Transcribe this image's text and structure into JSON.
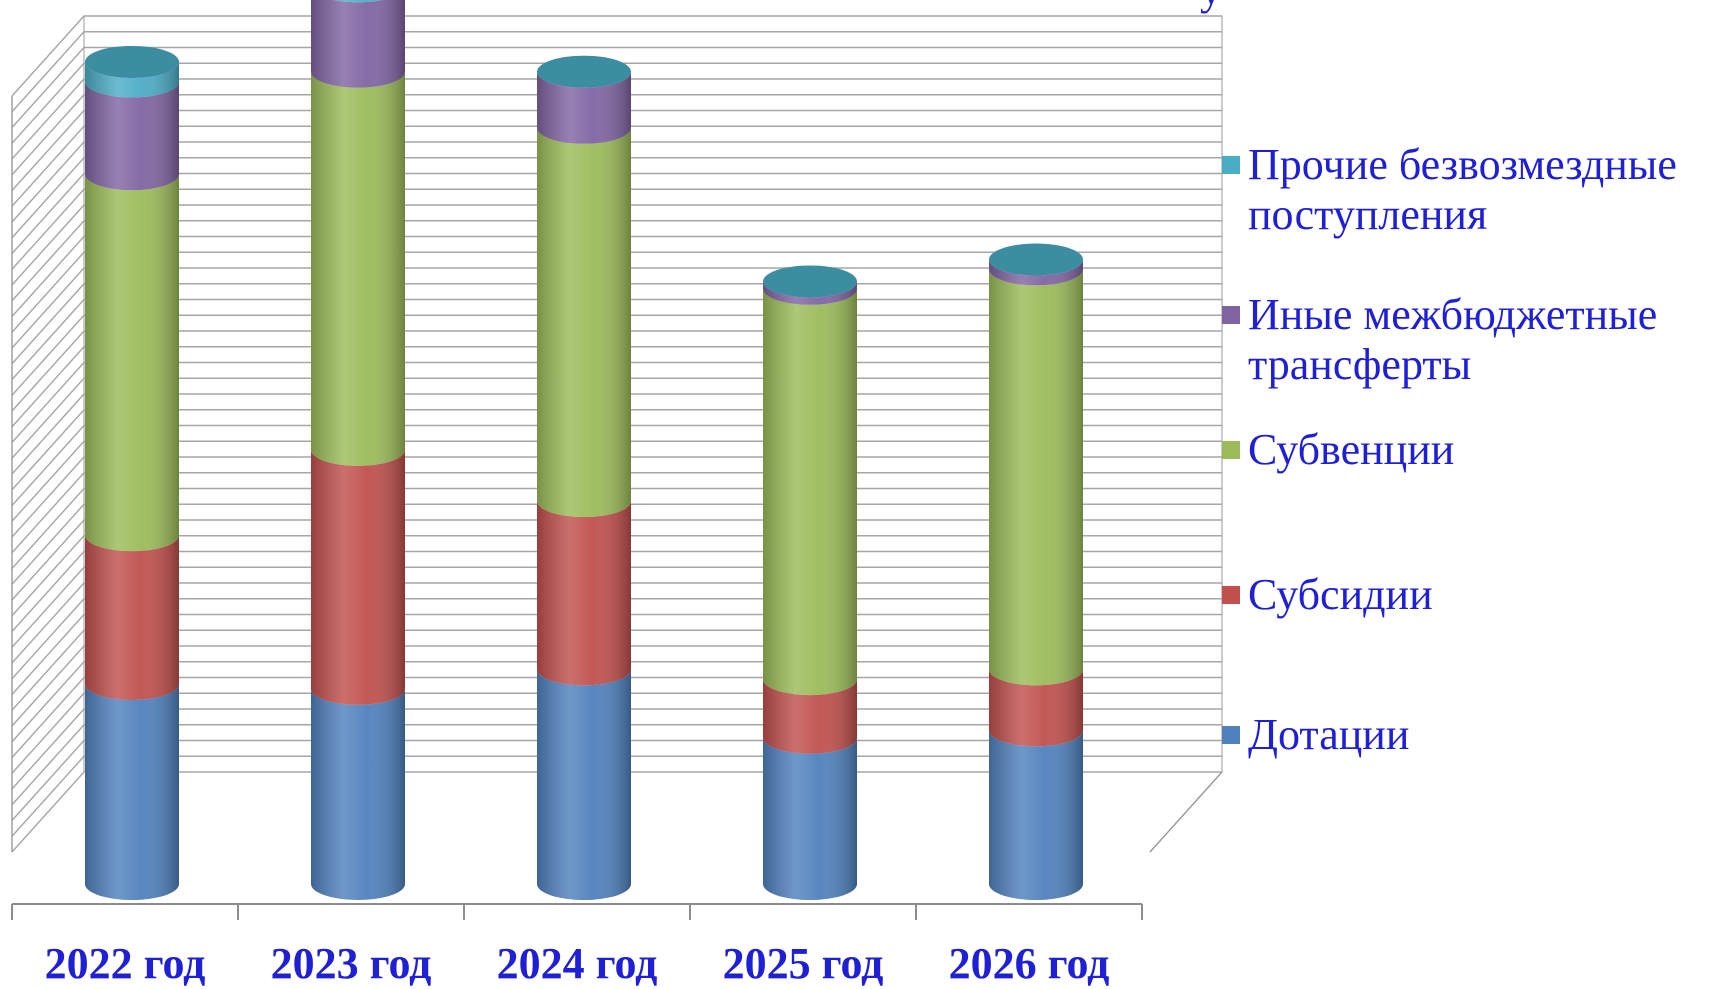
{
  "chart_data": {
    "type": "bar",
    "stacked": true,
    "style": "3d-cylinder",
    "title_fragment": "у",
    "categories": [
      "2022 год",
      "2023 год",
      "2024 год",
      "2025 год",
      "2026 год"
    ],
    "ylim": [
      0,
      38
    ],
    "grid": true,
    "legend_position": "right",
    "series": [
      {
        "name": "Дотации",
        "color": "#4f81bd",
        "values": [
          8.2,
          8.0,
          8.8,
          6.0,
          6.3
        ]
      },
      {
        "name": "Субсидии",
        "color": "#c0504d",
        "values": [
          6.1,
          9.8,
          6.9,
          2.4,
          2.5
        ]
      },
      {
        "name": "Субвенции",
        "color": "#9bbb59",
        "values": [
          14.8,
          15.5,
          15.3,
          16.0,
          16.4
        ]
      },
      {
        "name": "Иные межбюджетные трансферты",
        "color": "#8064a2",
        "values": [
          3.8,
          3.5,
          2.3,
          0.3,
          0.4
        ]
      },
      {
        "name": "Прочие безвозмездные поступления",
        "color": "#4bacc6",
        "values": [
          0.8,
          1.5,
          0.0,
          0.0,
          0.0
        ]
      }
    ]
  },
  "legend": [
    {
      "label": "Прочие безвозмездные\nпоступления",
      "color": "#4bacc6"
    },
    {
      "label": "Иные межбюджетные\nтрансферты",
      "color": "#8064a2"
    },
    {
      "label": "Субвенции",
      "color": "#9bbb59"
    },
    {
      "label": "Субсидии",
      "color": "#c0504d"
    },
    {
      "label": "Дотации",
      "color": "#4f81bd"
    }
  ]
}
